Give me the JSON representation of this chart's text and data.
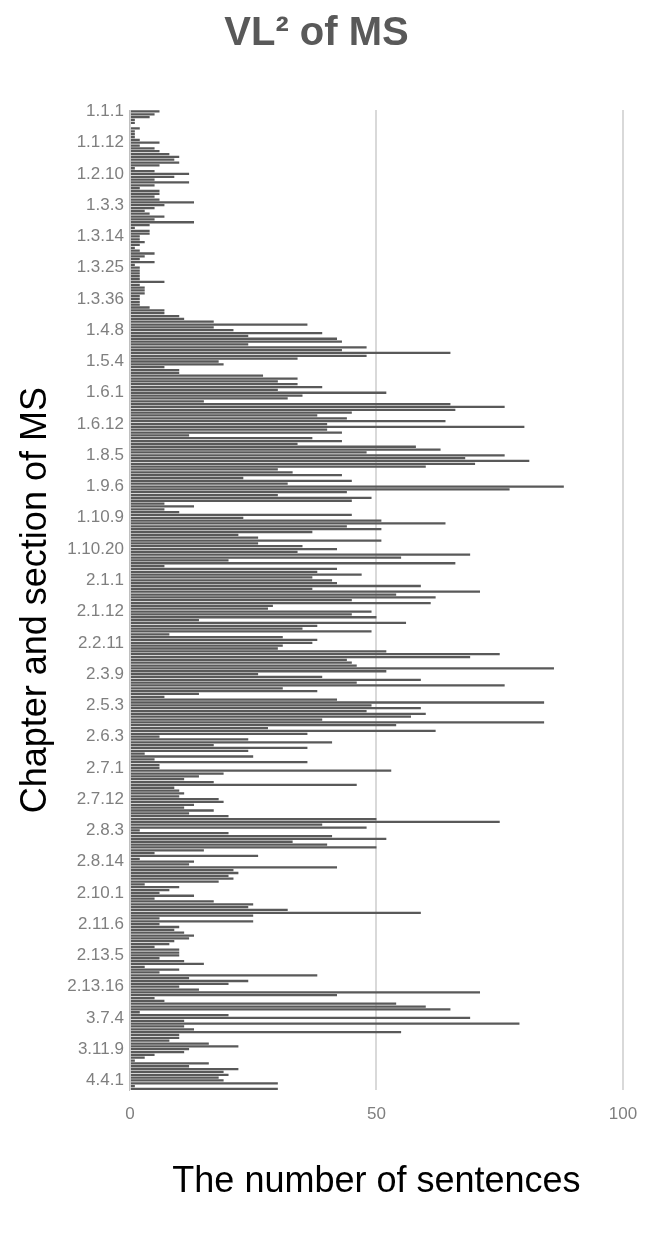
{
  "chart_data": {
    "type": "bar",
    "orientation": "horizontal",
    "title": "VL² of MS",
    "xlabel": "The number of sentences",
    "ylabel": "Chapter and section of MS",
    "categories": [
      "1.1.1",
      null,
      null,
      null,
      null,
      null,
      null,
      null,
      null,
      null,
      null,
      "1.1.12",
      null,
      null,
      null,
      null,
      null,
      null,
      null,
      null,
      null,
      null,
      "1.2.10",
      null,
      null,
      null,
      null,
      null,
      null,
      null,
      null,
      null,
      null,
      "1.3.3",
      null,
      null,
      null,
      null,
      null,
      null,
      null,
      null,
      null,
      null,
      "1.3.14",
      null,
      null,
      null,
      null,
      null,
      null,
      null,
      null,
      null,
      null,
      "1.3.25",
      null,
      null,
      null,
      null,
      null,
      null,
      null,
      null,
      null,
      null,
      "1.3.36",
      null,
      null,
      null,
      null,
      null,
      null,
      null,
      null,
      null,
      null,
      "1.4.8",
      null,
      null,
      null,
      null,
      null,
      null,
      null,
      null,
      null,
      null,
      "1.5.4",
      null,
      null,
      null,
      null,
      null,
      null,
      null,
      null,
      null,
      null,
      "1.6.1",
      null,
      null,
      null,
      null,
      null,
      null,
      null,
      null,
      null,
      null,
      "1.6.12",
      null,
      null,
      null,
      null,
      null,
      null,
      null,
      null,
      null,
      null,
      "1.8.5",
      null,
      null,
      null,
      null,
      null,
      null,
      null,
      null,
      null,
      null,
      "1.9.6",
      null,
      null,
      null,
      null,
      null,
      null,
      null,
      null,
      null,
      null,
      "1.10.9",
      null,
      null,
      null,
      null,
      null,
      null,
      null,
      null,
      null,
      null,
      "1.10.20",
      null,
      null,
      null,
      null,
      null,
      null,
      null,
      null,
      null,
      null,
      "2.1.1",
      null,
      null,
      null,
      null,
      null,
      null,
      null,
      null,
      null,
      null,
      "2.1.12",
      null,
      null,
      null,
      null,
      null,
      null,
      null,
      null,
      null,
      null,
      "2.2.11",
      null,
      null,
      null,
      null,
      null,
      null,
      null,
      null,
      null,
      null,
      "2.3.9",
      null,
      null,
      null,
      null,
      null,
      null,
      null,
      null,
      null,
      null,
      "2.5.3",
      null,
      null,
      null,
      null,
      null,
      null,
      null,
      null,
      null,
      null,
      "2.6.3",
      null,
      null,
      null,
      null,
      null,
      null,
      null,
      null,
      null,
      null,
      "2.7.1",
      null,
      null,
      null,
      null,
      null,
      null,
      null,
      null,
      null,
      null,
      "2.7.12",
      null,
      null,
      null,
      null,
      null,
      null,
      null,
      null,
      null,
      null,
      "2.8.3",
      null,
      null,
      null,
      null,
      null,
      null,
      null,
      null,
      null,
      null,
      "2.8.14",
      null,
      null,
      null,
      null,
      null,
      null,
      null,
      null,
      null,
      null,
      "2.10.1",
      null,
      null,
      null,
      null,
      null,
      null,
      null,
      null,
      null,
      null,
      "2.11.6",
      null,
      null,
      null,
      null,
      null,
      null,
      null,
      null,
      null,
      null,
      "2.13.5",
      null,
      null,
      null,
      null,
      null,
      null,
      null,
      null,
      null,
      null,
      "2.13.16",
      null,
      null,
      null,
      null,
      null,
      null,
      null,
      null,
      null,
      null,
      "3.7.4",
      null,
      null,
      null,
      null,
      null,
      null,
      null,
      null,
      null,
      null,
      "3.11.9",
      null,
      null,
      null,
      null,
      null,
      null,
      null,
      null,
      null,
      null,
      "4.4.1",
      null,
      null,
      null
    ],
    "values": [
      6,
      5,
      4,
      1,
      1,
      0,
      2,
      1,
      1,
      1,
      2,
      6,
      2,
      5,
      6,
      8,
      10,
      9,
      10,
      6,
      1,
      5,
      12,
      9,
      5,
      12,
      5,
      2,
      6,
      6,
      5,
      6,
      13,
      7,
      5,
      3,
      4,
      7,
      5,
      13,
      4,
      1,
      4,
      4,
      2,
      2,
      3,
      2,
      1,
      2,
      5,
      3,
      2,
      5,
      1,
      2,
      2,
      2,
      2,
      2,
      7,
      2,
      3,
      3,
      3,
      2,
      2,
      2,
      2,
      4,
      7,
      7,
      10,
      11,
      17,
      36,
      17,
      21,
      39,
      24,
      42,
      43,
      24,
      48,
      43,
      65,
      48,
      34,
      18,
      19,
      7,
      10,
      10,
      27,
      34,
      30,
      34,
      39,
      30,
      52,
      35,
      32,
      15,
      65,
      76,
      66,
      45,
      38,
      44,
      64,
      40,
      80,
      40,
      43,
      12,
      37,
      43,
      34,
      58,
      63,
      48,
      76,
      68,
      81,
      70,
      60,
      30,
      33,
      43,
      23,
      45,
      32,
      88,
      77,
      44,
      30,
      49,
      45,
      7,
      13,
      7,
      10,
      45,
      23,
      51,
      64,
      44,
      51,
      37,
      22,
      26,
      51,
      26,
      35,
      42,
      34,
      69,
      55,
      20,
      66,
      7,
      42,
      38,
      47,
      37,
      41,
      42,
      59,
      37,
      71,
      54,
      62,
      45,
      61,
      29,
      28,
      49,
      45,
      50,
      14,
      56,
      38,
      35,
      49,
      8,
      31,
      38,
      37,
      31,
      30,
      52,
      75,
      69,
      44,
      45,
      46,
      86,
      52,
      26,
      39,
      59,
      46,
      76,
      31,
      38,
      14,
      7,
      42,
      84,
      49,
      59,
      48,
      60,
      57,
      39,
      84,
      54,
      28,
      62,
      36,
      6,
      24,
      41,
      17,
      36,
      24,
      3,
      25,
      5,
      36,
      6,
      6,
      53,
      19,
      14,
      11,
      17,
      46,
      9,
      10,
      11,
      10,
      18,
      19,
      13,
      11,
      17,
      12,
      20,
      50,
      75,
      39,
      48,
      2,
      20,
      41,
      52,
      33,
      40,
      50,
      15,
      5,
      26,
      2,
      13,
      12,
      42,
      21,
      22,
      20,
      21,
      18,
      3,
      10,
      8,
      6,
      13,
      5,
      17,
      25,
      24,
      32,
      59,
      25,
      6,
      25,
      6,
      10,
      9,
      11,
      13,
      12,
      9,
      8,
      5,
      10,
      10,
      10,
      6,
      11,
      15,
      3,
      10,
      6,
      38,
      12,
      24,
      20,
      10,
      14,
      71,
      42,
      5,
      7,
      54,
      60,
      65,
      2,
      20,
      69,
      11,
      79,
      11,
      13,
      55,
      10,
      10,
      8,
      16,
      22,
      12,
      11,
      5,
      3,
      1,
      16,
      12,
      22,
      19,
      20,
      18,
      19,
      30,
      1,
      30
    ],
    "color": "#595959",
    "xlim": [
      0,
      100
    ],
    "xticks": [
      0,
      50,
      100
    ],
    "grid": "x"
  }
}
